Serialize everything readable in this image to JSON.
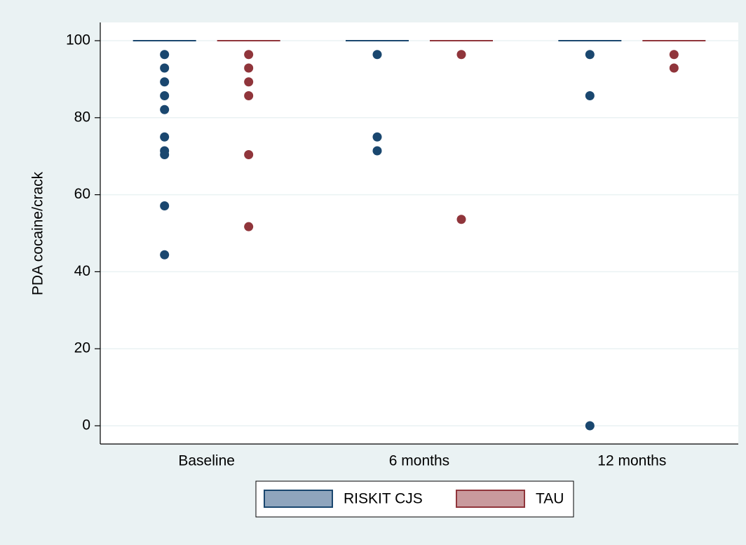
{
  "chart_data": {
    "type": "box",
    "y_label": "PDA cocaine/crack",
    "categories": [
      "Baseline",
      "6 months",
      "12 months"
    ],
    "ylim": [
      0,
      100
    ],
    "yticks": [
      0,
      20,
      40,
      60,
      80,
      100
    ],
    "grid": true,
    "legend": "bottom",
    "series": [
      {
        "name": "RISKIT CJS",
        "color": "#1a476f",
        "fill": "#8fa5bd",
        "boxes": [
          {
            "q1": 100,
            "median": 100,
            "q3": 100,
            "outliers": [
              96.4,
              92.9,
              89.3,
              85.7,
              82.1,
              75,
              71.4,
              70.4,
              57.1,
              44.4
            ]
          },
          {
            "q1": 100,
            "median": 100,
            "q3": 100,
            "outliers": [
              96.4,
              75,
              71.4
            ]
          },
          {
            "q1": 100,
            "median": 100,
            "q3": 100,
            "outliers": [
              96.4,
              85.7,
              0
            ]
          }
        ]
      },
      {
        "name": "TAU",
        "color": "#90353b",
        "fill": "#c99a9d",
        "boxes": [
          {
            "q1": 100,
            "median": 100,
            "q3": 100,
            "outliers": [
              96.4,
              92.9,
              89.3,
              85.7,
              70.4,
              51.7
            ]
          },
          {
            "q1": 100,
            "median": 100,
            "q3": 100,
            "outliers": [
              96.4,
              53.6
            ]
          },
          {
            "q1": 100,
            "median": 100,
            "q3": 100,
            "outliers": [
              96.4,
              92.9
            ]
          }
        ]
      }
    ]
  }
}
